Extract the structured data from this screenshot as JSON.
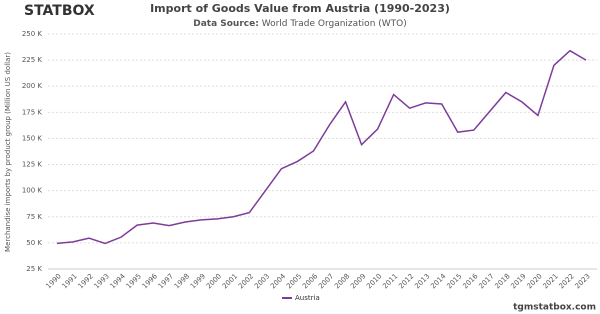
{
  "logo": "STATBOX",
  "footer": "tgmstatbox.com",
  "chart_data": {
    "type": "line",
    "title": "Import of Goods Value from Austria (1990-2023)",
    "subtitle_label": "Data Source:",
    "subtitle": "World Trade Organization (WTO)",
    "y_label": "Merchandise imports by product group (Million US dollar)",
    "categories": [
      "1990",
      "1991",
      "1992",
      "1993",
      "1994",
      "1995",
      "1996",
      "1997",
      "1998",
      "1999",
      "2000",
      "2001",
      "2002",
      "2003",
      "2004",
      "2005",
      "2006",
      "2007",
      "2008",
      "2009",
      "2010",
      "2011",
      "2012",
      "2013",
      "2014",
      "2015",
      "2016",
      "2017",
      "2018",
      "2019",
      "2020",
      "2021",
      "2022",
      "2023"
    ],
    "series": [
      {
        "name": "Austria",
        "color": "#7d3c98",
        "values": [
          49.5,
          51,
          54.5,
          49.5,
          55.5,
          67,
          69,
          66.5,
          70,
          72,
          73,
          75,
          79,
          100,
          121,
          128,
          138,
          163,
          185,
          144,
          159,
          192,
          179,
          184,
          183,
          156,
          158,
          176,
          194,
          185,
          172,
          220,
          234,
          225
        ]
      }
    ],
    "ylim": [
      25,
      250
    ],
    "yticks": [
      {
        "value": 25,
        "label": "25 K"
      },
      {
        "value": 50,
        "label": "50 K"
      },
      {
        "value": 75,
        "label": "75 K"
      },
      {
        "value": 100,
        "label": "100 K"
      },
      {
        "value": 125,
        "label": "125 K"
      },
      {
        "value": 150,
        "label": "150 K"
      },
      {
        "value": 175,
        "label": "175 K"
      },
      {
        "value": 200,
        "label": "200 K"
      },
      {
        "value": 225,
        "label": "225 K"
      },
      {
        "value": 250,
        "label": "250 K"
      }
    ],
    "grid": true,
    "legend": "bottom"
  }
}
